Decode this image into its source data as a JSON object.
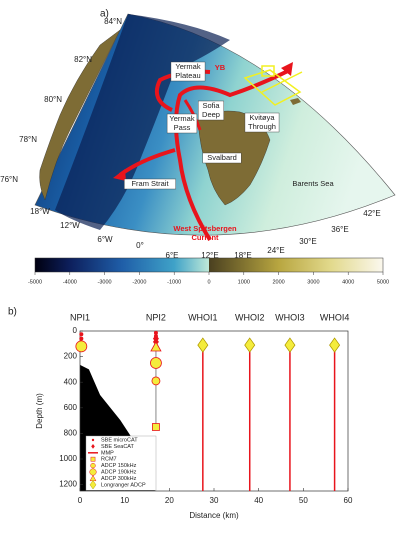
{
  "map": {
    "panel_label": "a)",
    "lat_labels": [
      "84°N",
      "82°N",
      "80°N",
      "78°N",
      "76°N"
    ],
    "lon_labels": [
      "18°W",
      "12°W",
      "6°W",
      "0°",
      "6°E",
      "12°E",
      "18°E",
      "24°E",
      "30°E",
      "36°E",
      "42°E"
    ],
    "places": [
      {
        "lines": [
          "YB"
        ]
      },
      {
        "lines": [
          "Yermak",
          "Plateau"
        ]
      },
      {
        "lines": [
          "Sofia",
          "Deep"
        ]
      },
      {
        "lines": [
          "Yermak",
          "Pass"
        ]
      },
      {
        "lines": [
          "Kvitøya",
          "Through"
        ]
      },
      {
        "lines": [
          "Svalbard"
        ]
      },
      {
        "lines": [
          "Barents Sea"
        ]
      },
      {
        "lines": [
          "Fram Strait"
        ]
      },
      {
        "lines": [
          "West Spitsbergen",
          "Current"
        ]
      }
    ]
  },
  "chart_data": [
    {
      "type": "colorbar",
      "xlim": [
        -5000,
        5000
      ],
      "xticks": [
        -5000,
        -4000,
        -3000,
        -2000,
        -1000,
        0,
        1000,
        2000,
        3000,
        4000,
        5000
      ]
    },
    {
      "type": "mooring",
      "panel_label": "b)",
      "x_label": "Distance (km)",
      "y_label": "Depth (m)",
      "xlim": [
        0,
        60
      ],
      "xticks": [
        0,
        10,
        20,
        30,
        40,
        50,
        60
      ],
      "ylim": [
        0,
        1250
      ],
      "yticks": [
        0,
        200,
        400,
        600,
        800,
        1000,
        1200
      ],
      "y_inverted": true,
      "moorings": {
        "labels": [
          "NPI1",
          "NPI2",
          "WHOI1",
          "WHOI2",
          "WHOI3",
          "WHOI4"
        ],
        "x": [
          0,
          17,
          27.5,
          38,
          47,
          57
        ]
      },
      "bathymetry": {
        "x": [
          0,
          2,
          4.5,
          9,
          13.4,
          15.7,
          16.8
        ],
        "values": [
          265,
          300,
          500,
          695,
          930,
          1160,
          1250
        ],
        "color": "#000000"
      },
      "series": [
        {
          "name": "SBE microCAT",
          "marker": "dot",
          "color": "#e8141c",
          "x": [
            0.3,
            0.3,
            17,
            17
          ],
          "values": [
            25,
            60,
            15,
            40
          ]
        },
        {
          "name": "SBE SeaCAT",
          "marker": "diamond",
          "color": "#e8141c",
          "x": [
            0.3,
            17,
            17
          ],
          "values": [
            100,
            60,
            85
          ]
        },
        {
          "name": "MMP",
          "marker": "line",
          "color": "#e8141c",
          "x": [
            27.5,
            38,
            47,
            57
          ],
          "values": [
            110,
            110,
            110,
            110
          ]
        },
        {
          "name": "RCM7",
          "marker": "square",
          "color": "#f4ec3c",
          "x": [
            17
          ],
          "values": [
            750
          ]
        },
        {
          "name": "ADCP 150kHz",
          "marker": "circle",
          "color": "#f4ec3c",
          "x": [
            17
          ],
          "values": [
            390
          ]
        },
        {
          "name": "ADCP 190kHz",
          "marker": "circle-large",
          "color": "#f4ec3c",
          "x": [
            0.3,
            17
          ],
          "values": [
            120,
            250
          ]
        },
        {
          "name": "ADCP 300kHz",
          "marker": "triangle",
          "color": "#f4ec3c",
          "x": [
            17
          ],
          "values": [
            125
          ]
        },
        {
          "name": "Longranger ADCP",
          "marker": "diamond-large",
          "color": "#f4ec3c",
          "x": [
            27.5,
            38,
            47,
            57
          ],
          "values": [
            110,
            110,
            110,
            110
          ]
        }
      ]
    }
  ]
}
